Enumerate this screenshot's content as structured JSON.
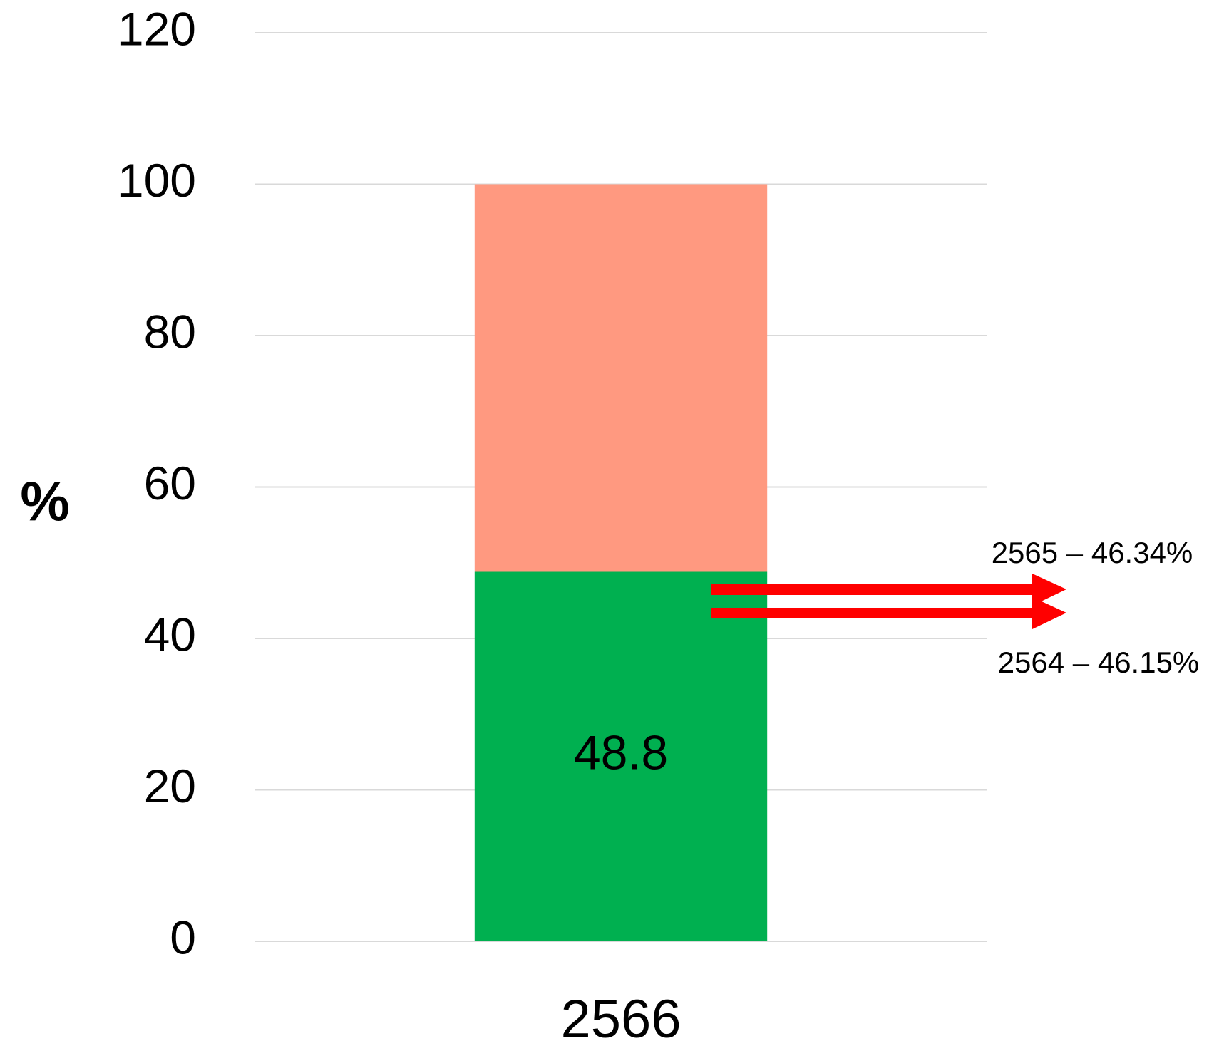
{
  "chart_data": {
    "type": "stacked_bar",
    "y_label": "%",
    "categories": [
      "2566"
    ],
    "series": [
      {
        "color": "#00b050",
        "values": [
          48.8
        ],
        "show_labels": true
      },
      {
        "color": "#ff9980",
        "values": [
          51.2
        ],
        "show_labels": false
      }
    ],
    "ylim": [
      0,
      120
    ],
    "yticks": [
      0,
      20,
      40,
      60,
      80,
      100,
      120
    ],
    "grid": true,
    "annotations": [
      "2565 – 46.34%",
      "2564 – 46.15%"
    ]
  }
}
